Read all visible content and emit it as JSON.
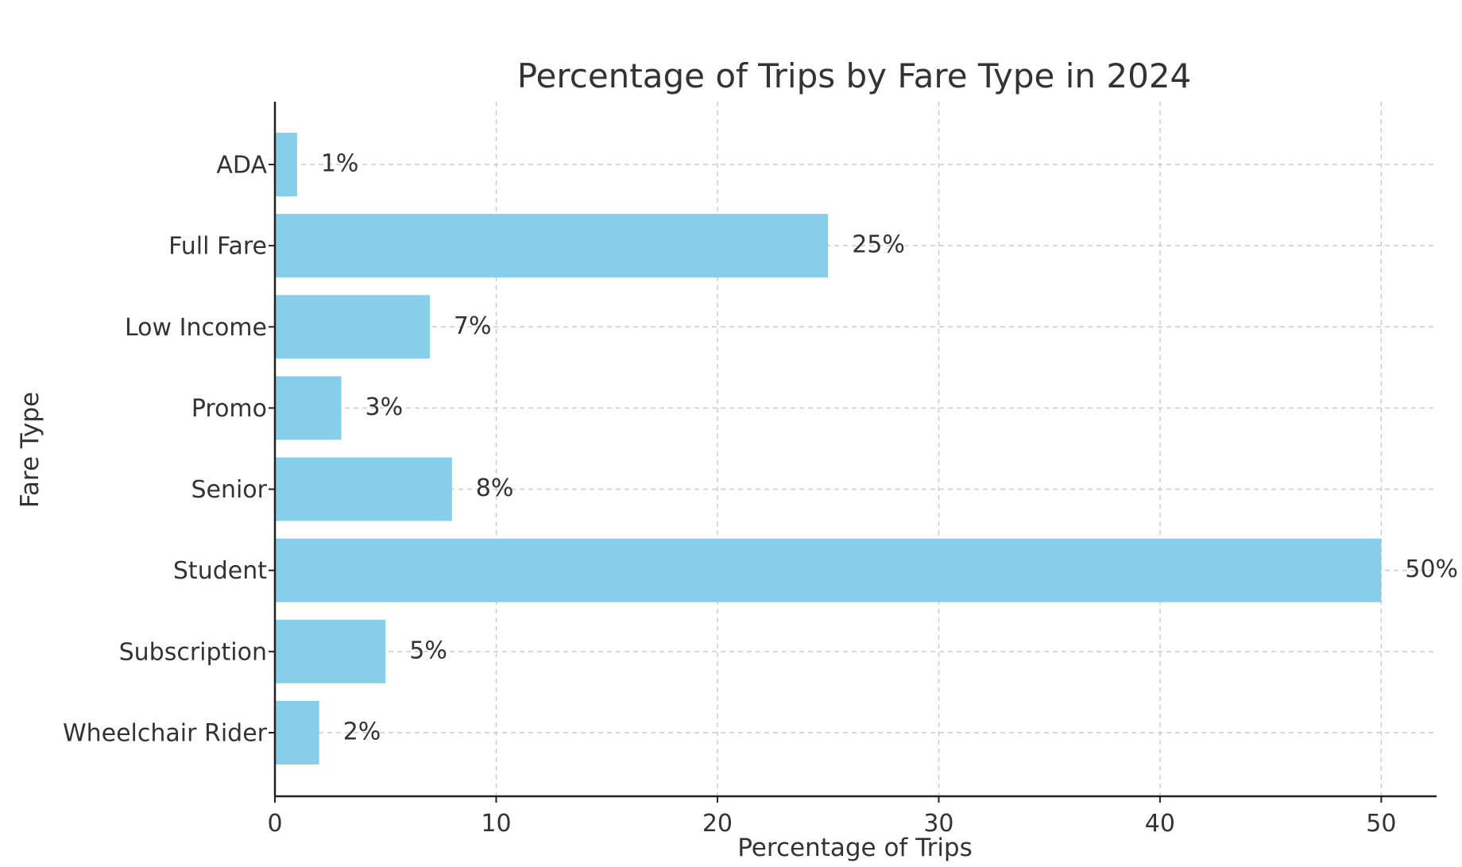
{
  "chart_data": {
    "type": "bar",
    "orientation": "horizontal",
    "title": "Percentage of Trips by Fare Type in 2024",
    "xlabel": "Percentage of Trips",
    "ylabel": "Fare Type",
    "categories": [
      "ADA",
      "Full Fare",
      "Low Income",
      "Promo",
      "Senior",
      "Student",
      "Subscription",
      "Wheelchair Rider"
    ],
    "values": [
      1,
      25,
      7,
      3,
      8,
      50,
      5,
      2
    ],
    "value_labels": [
      "1%",
      "25%",
      "7%",
      "3%",
      "8%",
      "50%",
      "5%",
      "2%"
    ],
    "xlim": [
      0,
      52.5
    ],
    "xticks": [
      0,
      10,
      20,
      30,
      40,
      50
    ],
    "xtick_labels": [
      "0",
      "10",
      "20",
      "30",
      "40",
      "50"
    ],
    "grid": true,
    "colors": {
      "bar": "#87ceeb",
      "text": "#333333",
      "axis": "#222222",
      "grid": "#cccccc"
    }
  }
}
